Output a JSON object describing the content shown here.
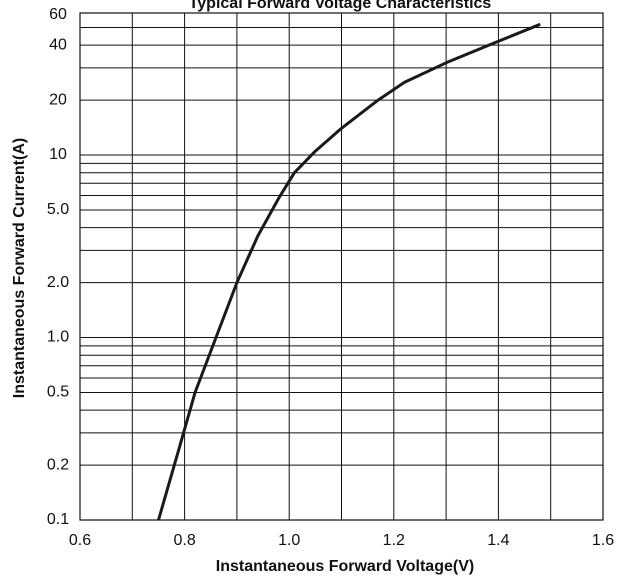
{
  "chart_data": {
    "type": "line",
    "title": "Typical Forward Voltage Characteristics",
    "xlabel": "Instantaneous Forward Voltage(V)",
    "ylabel": "Instantaneous Forward Current(A)",
    "xlim": [
      0.6,
      1.6
    ],
    "ylim": [
      0.1,
      60
    ],
    "y_scale": "log",
    "grid": true,
    "x_ticks": [
      0.6,
      0.8,
      1.0,
      1.2,
      1.4,
      1.6
    ],
    "x_tick_labels": [
      "0.6",
      "0.8",
      "1.0",
      "1.2",
      "1.4",
      "1.6"
    ],
    "y_ticks": [
      0.1,
      0.2,
      0.5,
      1.0,
      2.0,
      5.0,
      10,
      20,
      40,
      60
    ],
    "y_tick_labels": [
      "0.1",
      "0.2",
      "0.5",
      "1.0",
      "2.0",
      "5.0",
      "10",
      "20",
      "40",
      "60"
    ],
    "y_gridlines": [
      0.1,
      0.2,
      0.3,
      0.4,
      0.5,
      0.6,
      0.7,
      0.8,
      0.9,
      1,
      2,
      3,
      4,
      5,
      6,
      7,
      8,
      9,
      10,
      20,
      30,
      40,
      50,
      60
    ],
    "series": [
      {
        "x": [
          0.75,
          0.79,
          0.82,
          0.86,
          0.9,
          0.94,
          0.98,
          1.01,
          1.05,
          1.1,
          1.17,
          1.22,
          1.3,
          1.4,
          1.48
        ],
        "y": [
          0.1,
          0.25,
          0.5,
          1.0,
          2.0,
          3.6,
          5.8,
          8.0,
          10.5,
          14,
          20,
          25,
          32,
          42,
          52
        ]
      }
    ]
  }
}
